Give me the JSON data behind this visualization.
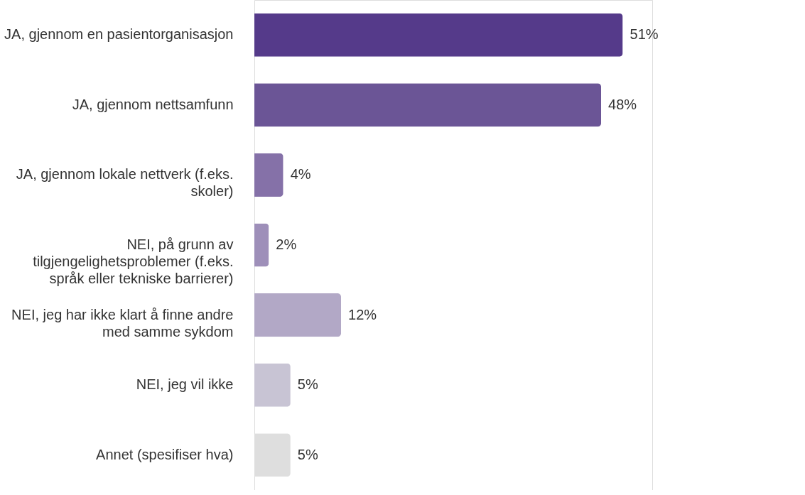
{
  "chart_data": {
    "type": "bar",
    "orientation": "horizontal",
    "categories": [
      "JA, gjennom en pasientorganisasjon",
      "JA, gjennom nettsamfunn",
      "JA, gjennom lokale nettverk (f.eks. skoler)",
      "NEI, på grunn av tilgjengelighetsproblemer (f.eks. språk eller tekniske barrierer)",
      "NEI, jeg har ikke klart å finne andre med samme sykdom",
      "NEI, jeg vil ikke",
      "Annet (spesifiser hva)"
    ],
    "values": [
      51,
      48,
      4,
      2,
      12,
      5,
      5
    ],
    "colors": [
      "#553a8a",
      "#6b5596",
      "#8571a8",
      "#9e8fb9",
      "#b2a8c6",
      "#c8c4d4",
      "#dedede"
    ],
    "value_labels": [
      "51%",
      "48%",
      "4%",
      "2%",
      "12%",
      "5%",
      "5%"
    ]
  }
}
